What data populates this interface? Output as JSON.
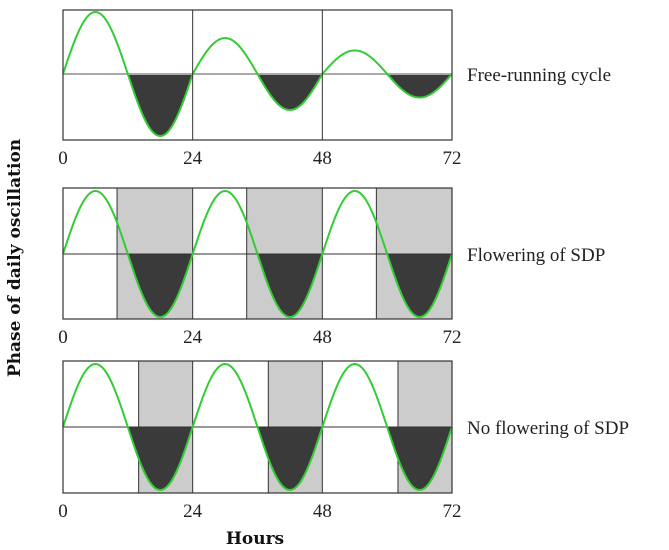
{
  "colors": {
    "curve": "#33cc33",
    "dark_fill": "#3a3a3a",
    "night_band": "#cccccc",
    "frame": "#333333",
    "baseline": "#aaaaaa"
  },
  "y_axis_title": "Phase of daily oscillation",
  "x_axis_title": "Hours",
  "x_ticks": [
    "0",
    "24",
    "48",
    "72"
  ],
  "panels": [
    {
      "label": "Free-running cycle",
      "dark_bands": [],
      "peak_amplitudes": [
        1,
        0.58,
        0.38
      ]
    },
    {
      "label": "Flowering of SDP",
      "dark_bands": [
        [
          10,
          24
        ],
        [
          34,
          48
        ],
        [
          58,
          72
        ]
      ],
      "peak_amplitudes": [
        1,
        1,
        1
      ]
    },
    {
      "label": "No flowering of SDP",
      "dark_bands": [
        [
          14,
          24
        ],
        [
          38,
          48
        ],
        [
          62,
          72
        ]
      ],
      "peak_amplitudes": [
        1,
        1,
        1
      ]
    }
  ]
}
